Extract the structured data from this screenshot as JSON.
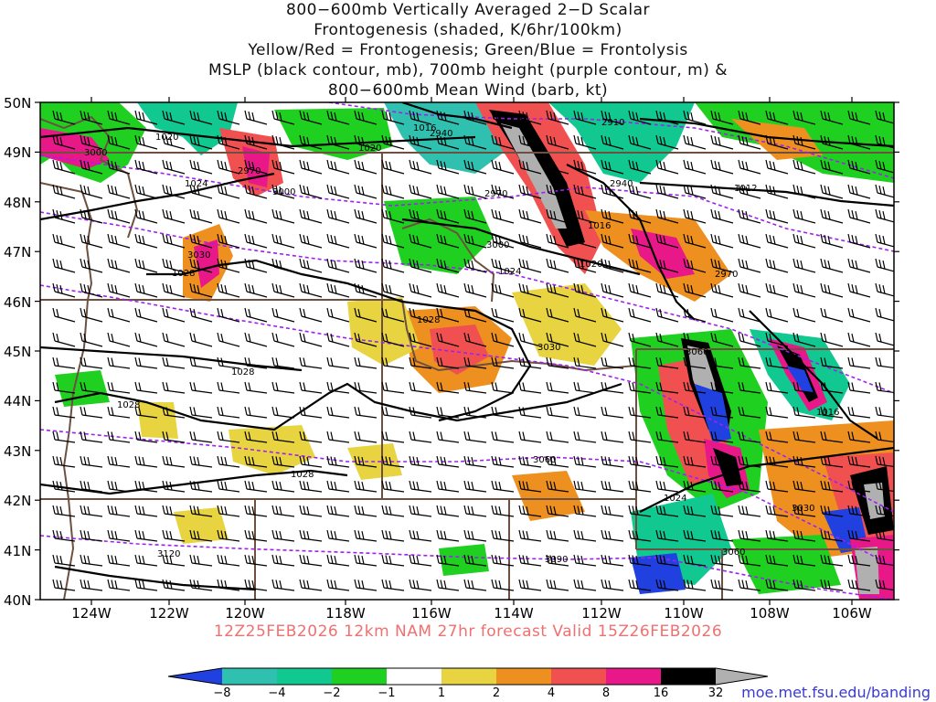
{
  "title_lines": [
    "800−600mb Vertically Averaged 2−D Scalar",
    "Frontogenesis (shaded, K/6hr/100km)",
    "Yellow/Red = Frontogenesis;  Green/Blue = Frontolysis",
    "MSLP (black contour, mb), 700mb height (purple contour, m) &",
    "800−600mb Mean Wind (barb, kt)"
  ],
  "map": {
    "lat_labels": [
      "50N",
      "49N",
      "48N",
      "47N",
      "46N",
      "45N",
      "44N",
      "43N",
      "42N",
      "41N",
      "40N"
    ],
    "lon_labels": [
      "124W",
      "122W",
      "120W",
      "118W",
      "116W",
      "114W",
      "112W",
      "110W",
      "108W",
      "106W"
    ],
    "mslp_labels": [
      "1020",
      "1020",
      "1024",
      "1016",
      "1028",
      "1028",
      "1028",
      "1028",
      "1024",
      "1020",
      "1016",
      "1012",
      "1028",
      "1024",
      "1016"
    ],
    "height_labels": [
      "3000",
      "2970",
      "3000",
      "3030",
      "2940",
      "2970",
      "3000",
      "2910",
      "2940",
      "2970",
      "3030",
      "3060",
      "3060",
      "3030",
      "3090",
      "3120",
      "3060"
    ],
    "colors": {
      "mslp": "#000000",
      "height": "#a020f0",
      "border": "#6e5040",
      "frontogenesis": [
        "#e8d440",
        "#ee9020",
        "#f05050",
        "#e81888",
        "#000000",
        "#b0b0b0"
      ],
      "frontolysis": [
        "#20d020",
        "#10c890",
        "#30c0b0",
        "#2040e0"
      ]
    }
  },
  "forecast_text": "12Z25FEB2026 12km NAM 27hr forecast Valid 15Z26FEB2026",
  "colorbar": {
    "labels": [
      "−8",
      "−4",
      "−2",
      "−1",
      "1",
      "2",
      "4",
      "8",
      "16",
      "32"
    ],
    "colors": [
      "#2040e0",
      "#30c0b0",
      "#10c890",
      "#20d020",
      "#ffffff",
      "#e8d440",
      "#ee9020",
      "#f05050",
      "#e81888",
      "#000000",
      "#b0b0b0"
    ]
  },
  "credit": "moe.met.fsu.edu/banding"
}
